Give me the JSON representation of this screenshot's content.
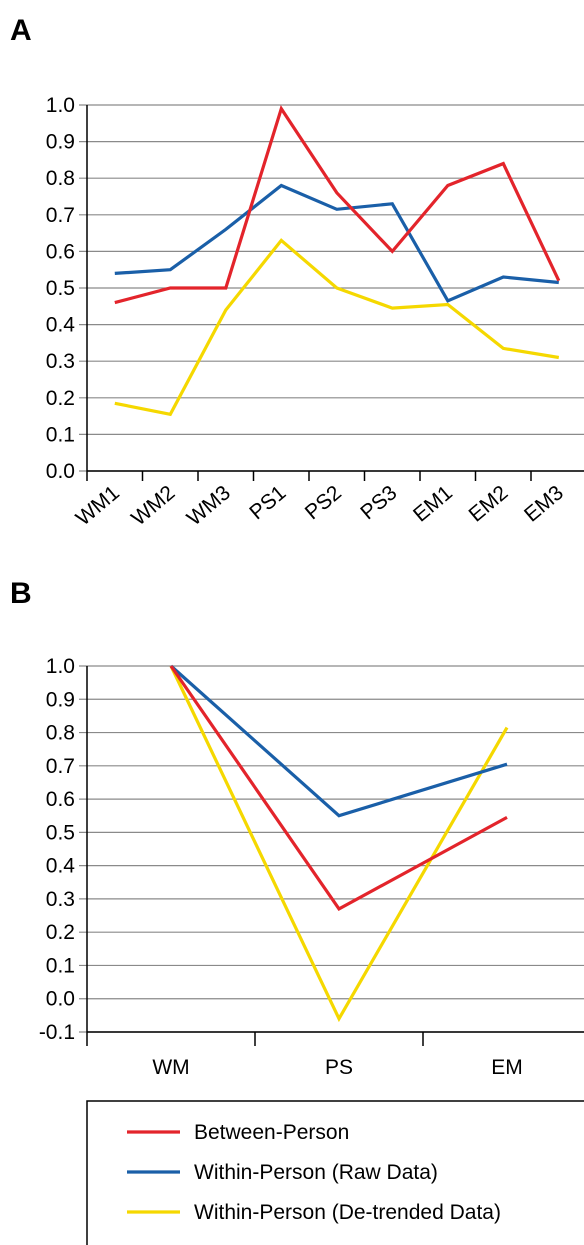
{
  "chart_data": [
    {
      "panel": "A",
      "type": "line",
      "categories": [
        "WM1",
        "WM2",
        "WM3",
        "PS1",
        "PS2",
        "PS3",
        "EM1",
        "EM2",
        "EM3"
      ],
      "ylim": [
        0.0,
        1.0
      ],
      "yticks": [
        "1.0",
        "0.9",
        "0.8",
        "0.7",
        "0.6",
        "0.5",
        "0.4",
        "0.3",
        "0.2",
        "0.1",
        "0.0"
      ],
      "grid": true,
      "series": [
        {
          "name": "Between-Person",
          "color": "#e3242b",
          "values": [
            0.46,
            0.5,
            0.5,
            0.99,
            0.76,
            0.6,
            0.78,
            0.84,
            0.52
          ]
        },
        {
          "name": "Within-Person (Raw Data)",
          "color": "#1a5fa8",
          "values": [
            0.54,
            0.55,
            0.66,
            0.78,
            0.715,
            0.73,
            0.465,
            0.53,
            0.515
          ]
        },
        {
          "name": "Within-Person (De-trended Data)",
          "color": "#f5d800",
          "values": [
            0.185,
            0.155,
            0.44,
            0.63,
            0.5,
            0.445,
            0.455,
            0.335,
            0.31
          ]
        }
      ]
    },
    {
      "panel": "B",
      "type": "line",
      "categories": [
        "WM",
        "PS",
        "EM"
      ],
      "ylim": [
        -0.1,
        1.0
      ],
      "yticks": [
        "1.0",
        "0.9",
        "0.8",
        "0.7",
        "0.6",
        "0.5",
        "0.4",
        "0.3",
        "0.2",
        "0.1",
        "0.0",
        "-0.1"
      ],
      "grid": true,
      "series": [
        {
          "name": "Between-Person",
          "color": "#e3242b",
          "values": [
            1.0,
            0.27,
            0.545
          ]
        },
        {
          "name": "Within-Person (Raw Data)",
          "color": "#1a5fa8",
          "values": [
            1.0,
            0.55,
            0.705
          ]
        },
        {
          "name": "Within-Person (De-trended Data)",
          "color": "#f5d800",
          "values": [
            1.0,
            -0.06,
            0.815
          ]
        }
      ]
    }
  ],
  "legend": {
    "placement": "bottom",
    "items": [
      {
        "label": "Between-Person",
        "color": "#e3242b"
      },
      {
        "label": "Within-Person (Raw Data)",
        "color": "#1a5fa8"
      },
      {
        "label": "Within-Person (De-trended Data)",
        "color": "#f5d800"
      }
    ]
  }
}
